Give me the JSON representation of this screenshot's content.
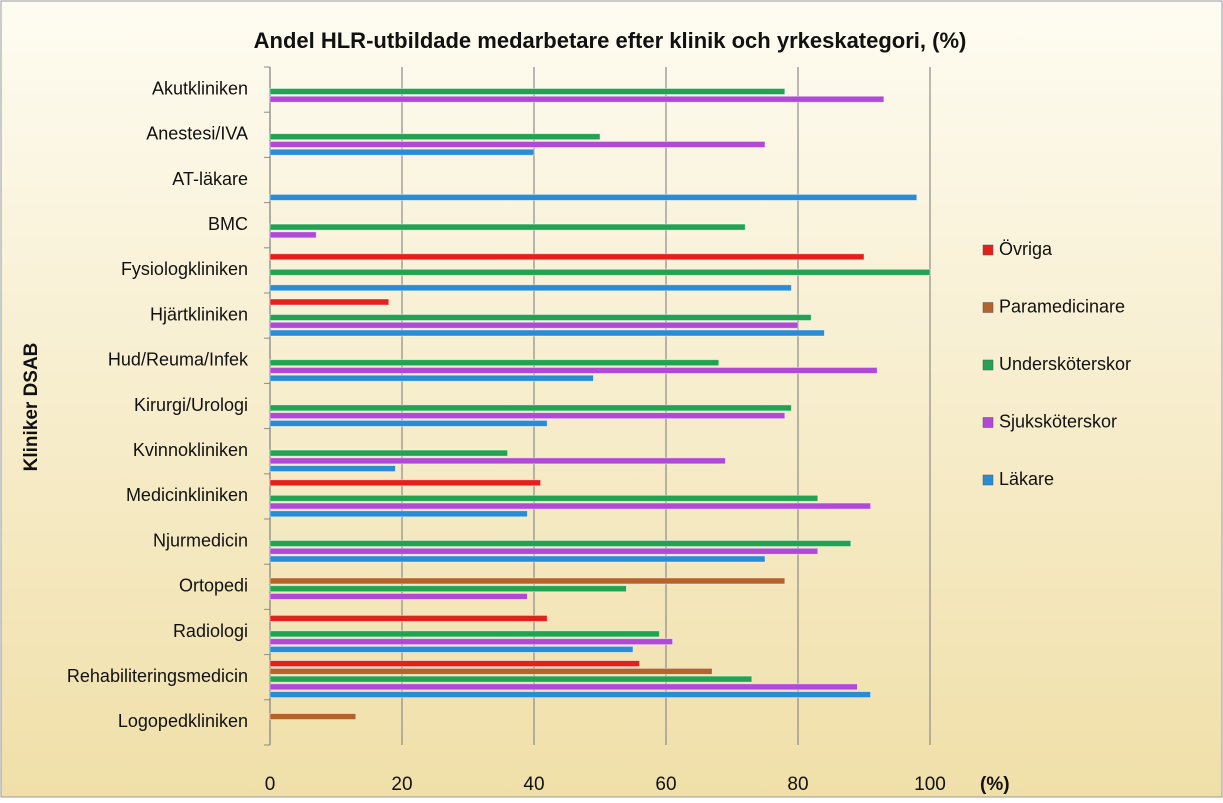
{
  "chart_data": {
    "type": "hbar",
    "title": "Andel HLR-utbildade medarbetare efter klinik och yrkeskategori, (%)",
    "ylabel": "Kliniker DSAB",
    "xlabel": "(%)",
    "categories": [
      "Akutkliniken",
      "Anestesi/IVA",
      "AT-läkare",
      "BMC",
      "Fysiologkliniken",
      "Hjärtkliniken",
      "Hud/Reuma/Infek",
      "Kirurgi/Urologi",
      "Kvinnokliniken",
      "Medicinkliniken",
      "Njurmedicin",
      "Ortopedi",
      "Radiologi",
      "Rehabiliteringsmedicin",
      "Logopedkliniken"
    ],
    "series": [
      {
        "name": "Läkare",
        "color": "#2b8cd6",
        "values": [
          null,
          40,
          98,
          null,
          79,
          84,
          49,
          42,
          19,
          39,
          75,
          null,
          55,
          91,
          null
        ]
      },
      {
        "name": "Sjuksköterskor",
        "color": "#b04ad6",
        "values": [
          93,
          75,
          null,
          7,
          null,
          80,
          92,
          78,
          69,
          91,
          83,
          39,
          61,
          89,
          null
        ]
      },
      {
        "name": "Undersköterskor",
        "color": "#21a352",
        "values": [
          78,
          50,
          null,
          72,
          100,
          82,
          68,
          79,
          36,
          83,
          88,
          54,
          59,
          73,
          null
        ]
      },
      {
        "name": "Paramedicinare",
        "color": "#b5632a",
        "values": [
          null,
          null,
          null,
          null,
          null,
          null,
          null,
          null,
          null,
          null,
          null,
          78,
          null,
          67,
          13
        ]
      },
      {
        "name": "Övriga",
        "color": "#e3201c",
        "values": [
          null,
          null,
          null,
          null,
          90,
          18,
          null,
          null,
          null,
          41,
          null,
          null,
          42,
          56,
          null
        ]
      }
    ],
    "xlim": [
      0,
      100
    ],
    "xticks": [
      0,
      20,
      40,
      60,
      80,
      100
    ],
    "grid": true,
    "legend": "right"
  }
}
